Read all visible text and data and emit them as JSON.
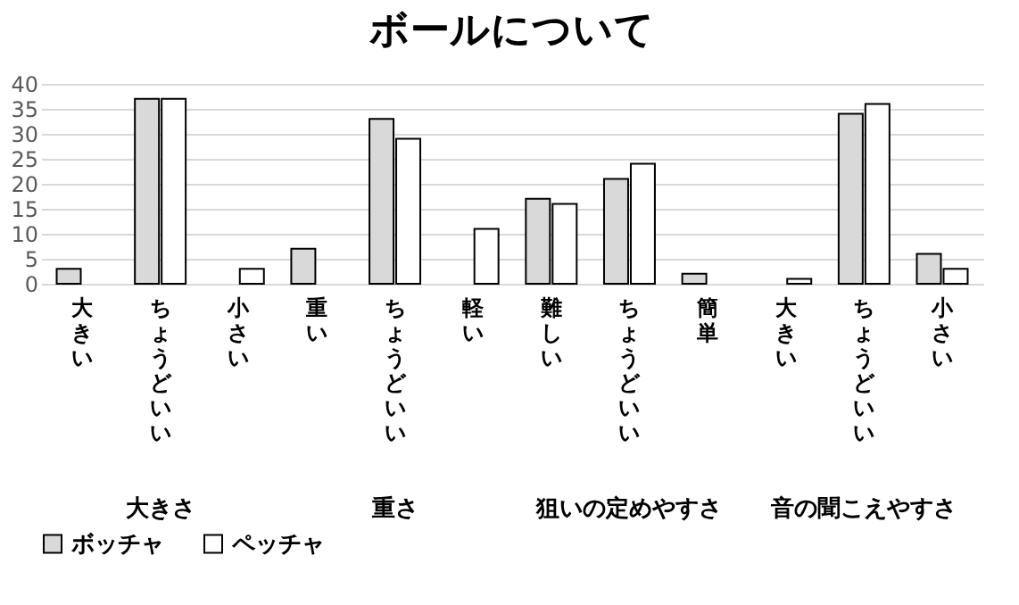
{
  "chart_data": {
    "type": "bar",
    "title": "ボールについて",
    "categories": [
      "大きい",
      "ちょうどいい",
      "小さい",
      "重い",
      "ちょうどいい",
      "軽い",
      "難しい",
      "ちょうどいい",
      "簡単",
      "大きい",
      "ちょうどいい",
      "小さい"
    ],
    "series": [
      {
        "name": "ボッチャ",
        "color": "#d9d9d9",
        "values": [
          3,
          37,
          0,
          7,
          33,
          0,
          17,
          21,
          2,
          0,
          34,
          6
        ]
      },
      {
        "name": "ペッチャ",
        "color": "#ffffff",
        "values": [
          0,
          37,
          3,
          0,
          29,
          11,
          16,
          24,
          0,
          1,
          36,
          3
        ]
      }
    ],
    "annotations": [
      "大きさ",
      "重さ",
      "狙いの定めやすさ",
      "音の聞こえやすさ"
    ],
    "ylim": [
      0,
      40
    ],
    "yticks": [
      0,
      5,
      10,
      15,
      20,
      25,
      30,
      35,
      40
    ],
    "grid": true,
    "legend": "bottom"
  }
}
